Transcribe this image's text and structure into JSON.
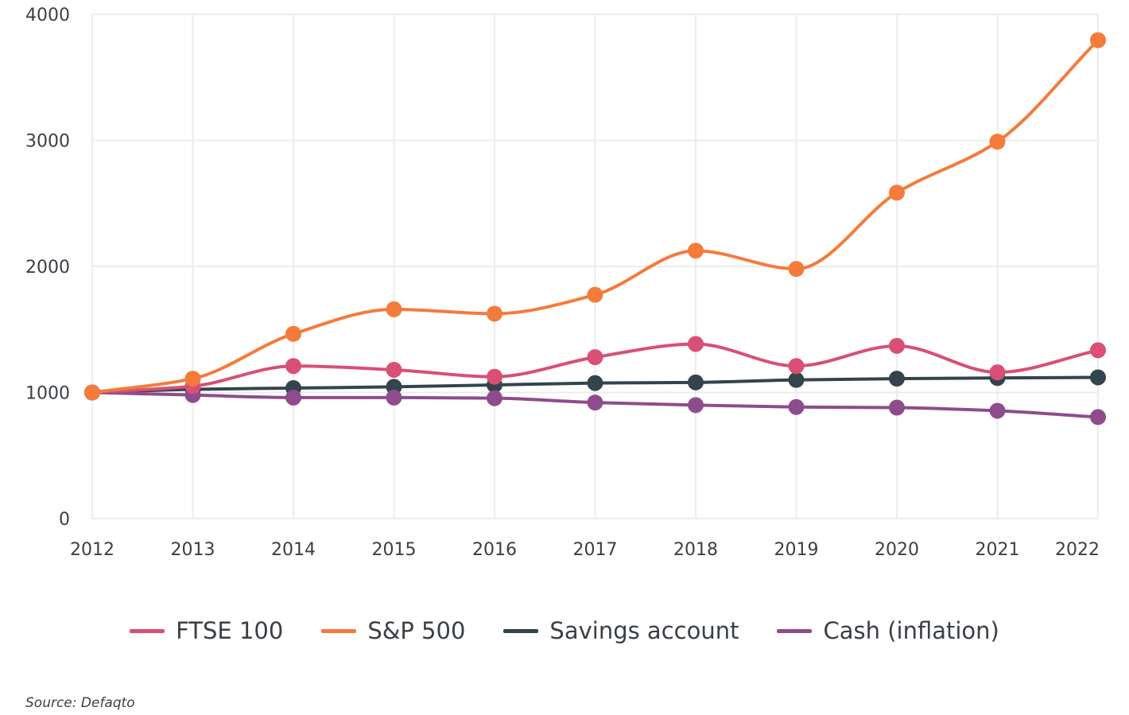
{
  "chart_data": {
    "type": "line",
    "x": [
      "2012",
      "2013",
      "2014",
      "2015",
      "2016",
      "2017",
      "2018",
      "2019",
      "2020",
      "2021",
      "2022"
    ],
    "ylim": [
      0,
      4000
    ],
    "yticks": [
      0,
      1000,
      2000,
      3000,
      4000
    ],
    "grid": true,
    "legend_position": "bottom",
    "series": [
      {
        "name": "FTSE 100",
        "color": "#d94f75",
        "values": [
          1000,
          1050,
          1210,
          1180,
          1125,
          1280,
          1385,
          1210,
          1370,
          1160,
          1335
        ]
      },
      {
        "name": "S&P 500",
        "color": "#f47b3b",
        "values": [
          1000,
          1110,
          1465,
          1660,
          1625,
          1775,
          2125,
          1980,
          2585,
          2990,
          3795
        ]
      },
      {
        "name": "Savings account",
        "color": "#34444c",
        "values": [
          1000,
          1025,
          1035,
          1045,
          1060,
          1075,
          1080,
          1100,
          1110,
          1115,
          1120
        ]
      },
      {
        "name": "Cash (inflation)",
        "color": "#8e4c8c",
        "values": [
          1000,
          980,
          960,
          960,
          955,
          920,
          900,
          885,
          880,
          855,
          805
        ]
      }
    ],
    "source": "Source: Defaqto"
  }
}
